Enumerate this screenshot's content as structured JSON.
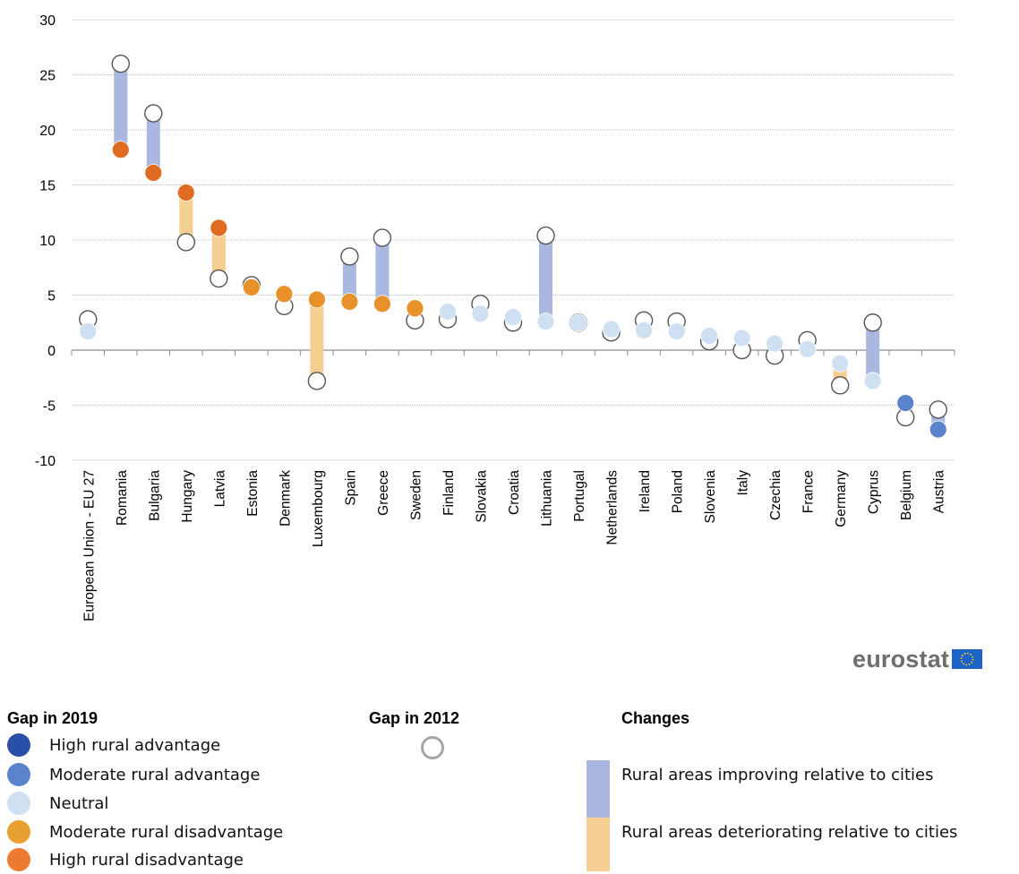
{
  "chart_data": {
    "type": "dot-change",
    "ylim": [
      -10,
      30
    ],
    "yticks": [
      -10,
      -5,
      0,
      5,
      10,
      15,
      20,
      25,
      30
    ],
    "grid": true,
    "categories": [
      "European Union - EU 27",
      "Romania",
      "Bulgaria",
      "Hungary",
      "Latvia",
      "Estonia",
      "Denmark",
      "Luxembourg",
      "Spain",
      "Greece",
      "Sweden",
      "Finland",
      "Slovakia",
      "Croatia",
      "Lithuania",
      "Portugal",
      "Netherlands",
      "Ireland",
      "Poland",
      "Slovenia",
      "Italy",
      "Czechia",
      "France",
      "Germany",
      "Cyprus",
      "Belgium",
      "Austria"
    ],
    "gap_2019": [
      1.7,
      18.2,
      16.1,
      14.3,
      11.1,
      5.7,
      5.1,
      4.6,
      4.4,
      4.2,
      3.8,
      3.5,
      3.3,
      3.0,
      2.6,
      2.5,
      1.9,
      1.8,
      1.7,
      1.3,
      1.1,
      0.6,
      0.1,
      -1.2,
      -2.8,
      -4.8,
      -7.2
    ],
    "gap_2012": [
      2.8,
      26.0,
      21.5,
      9.8,
      6.5,
      5.9,
      4.0,
      -2.8,
      8.5,
      10.2,
      2.7,
      2.8,
      4.2,
      2.5,
      10.4,
      2.5,
      1.6,
      2.7,
      2.6,
      0.8,
      0.0,
      -0.5,
      0.9,
      -3.2,
      2.5,
      -6.1,
      -5.4
    ],
    "class_2019": [
      "neutral",
      "high_dis",
      "high_dis",
      "high_dis",
      "high_dis",
      "mod_dis",
      "mod_dis",
      "mod_dis",
      "mod_dis",
      "mod_dis",
      "mod_dis",
      "neutral",
      "neutral",
      "neutral",
      "neutral",
      "neutral",
      "neutral",
      "neutral",
      "neutral",
      "neutral",
      "neutral",
      "neutral",
      "neutral",
      "neutral",
      "neutral",
      "mod_adv",
      "mod_adv"
    ],
    "colors": {
      "high_adv": "#2a4fa8",
      "mod_adv": "#5b83cc",
      "neutral": "#cfe0f3",
      "mod_dis": "#e8912a",
      "high_dis": "#e06c23",
      "improving": "#aab7e0",
      "deteriorating": "#f5cf92",
      "ring": "#555555"
    }
  },
  "logo": {
    "text": "eurostat"
  },
  "legend": {
    "gap2019": {
      "title": "Gap in 2019",
      "items": [
        {
          "key": "high_adv",
          "label": "High rural advantage"
        },
        {
          "key": "mod_adv",
          "label": "Moderate rural advantage"
        },
        {
          "key": "neutral",
          "label": "Neutral"
        },
        {
          "key": "mod_dis",
          "label": "Moderate rural disadvantage"
        },
        {
          "key": "high_dis",
          "label": "High rural disadvantage"
        }
      ]
    },
    "gap2012": {
      "title": "Gap in 2012"
    },
    "changes": {
      "title": "Changes",
      "improving": "Rural areas improving relative to cities",
      "deteriorating": "Rural areas deteriorating relative to cities"
    }
  }
}
